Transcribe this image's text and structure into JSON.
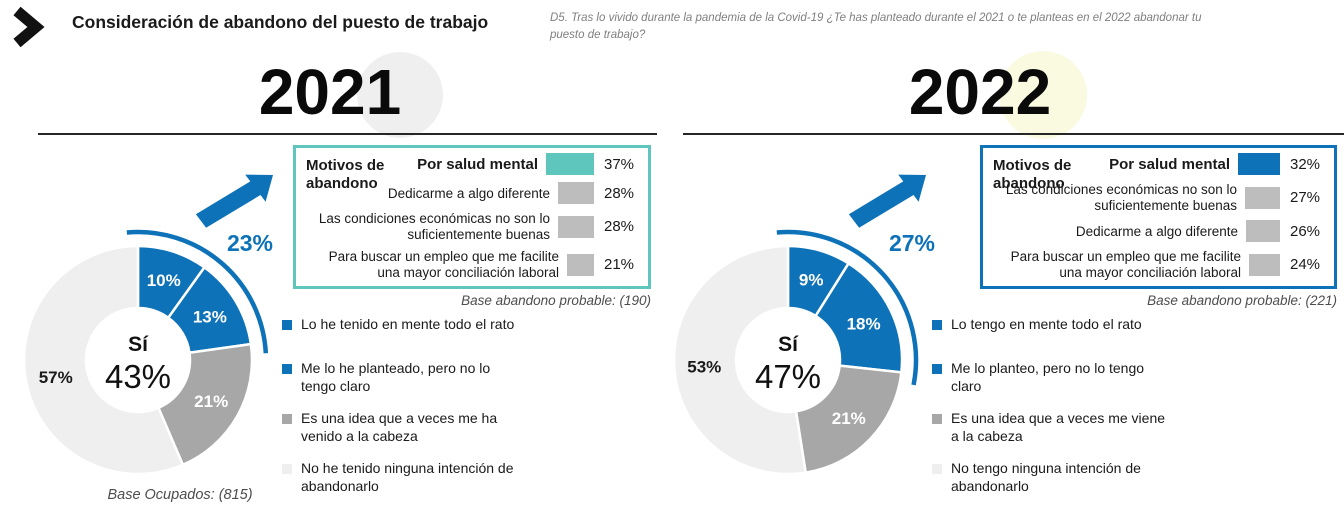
{
  "header": {
    "title": "Consideración de abandono del puesto de trabajo",
    "question": "D5. Tras lo vivido durante la pandemia de la Covid-19 ¿Te has planteado durante el 2021 o te planteas en el 2022 abandonar tu puesto de trabajo?"
  },
  "style": {
    "accent_blue": "#0d72b8",
    "accent_teal": "#5fc6bd",
    "segment_gray": "#a7a7a7",
    "segment_light": "#efefef",
    "bar_gray": "#bdbdbd",
    "year_circle_2021": "#efefef",
    "year_circle_2022": "#fafae1"
  },
  "chart_data": [
    {
      "type": "pie",
      "year": "2021",
      "center_label": "Sí",
      "center_value": "43%",
      "callout_value": "23%",
      "segments": [
        {
          "label": "Lo he tenido en mente todo el rato",
          "value": 10,
          "color": "#0d72b8",
          "text_color": "#ffffff"
        },
        {
          "label": "Me lo he planteado, pero no lo tengo claro",
          "value": 13,
          "color": "#0d72b8",
          "text_color": "#ffffff"
        },
        {
          "label": "Es una idea que a veces me ha venido a la cabeza",
          "value": 21,
          "color": "#a7a7a7",
          "text_color": "#ffffff"
        },
        {
          "label": "No he tenido ninguna intención de abandonarlo",
          "value": 57,
          "color": "#efefef",
          "text_color": "#1a1a1a"
        }
      ],
      "base_note": "Base Ocupados: (815)"
    },
    {
      "type": "bar",
      "year": "2021",
      "title": "Motivos de abandono",
      "categories": [
        "Por salud mental",
        "Dedicarme a algo diferente",
        "Las condiciones económicas no son lo suficientemente buenas",
        "Para buscar un empleo que me facilite una mayor conciliación laboral"
      ],
      "values": [
        37,
        28,
        28,
        21
      ],
      "value_labels": [
        "37%",
        "28%",
        "28%",
        "21%"
      ],
      "accent_color": "#5fc6bd",
      "bar_color": "#bdbdbd",
      "base_note": "Base abandono probable: (190)"
    },
    {
      "type": "pie",
      "year": "2022",
      "center_label": "Sí",
      "center_value": "47%",
      "callout_value": "27%",
      "segments": [
        {
          "label": "Lo tengo en mente todo el rato",
          "value": 9,
          "color": "#0d72b8",
          "text_color": "#ffffff"
        },
        {
          "label": "Me lo planteo, pero no lo tengo claro",
          "value": 18,
          "color": "#0d72b8",
          "text_color": "#ffffff"
        },
        {
          "label": "Es una idea que a veces me viene a la cabeza",
          "value": 21,
          "color": "#a7a7a7",
          "text_color": "#ffffff"
        },
        {
          "label": "No tengo ninguna intención de abandonarlo",
          "value": 53,
          "color": "#efefef",
          "text_color": "#1a1a1a"
        }
      ]
    },
    {
      "type": "bar",
      "year": "2022",
      "title": "Motivos de abandono",
      "categories": [
        "Por salud mental",
        "Las condiciones económicas no son lo suficientemente buenas",
        "Dedicarme a algo diferente",
        "Para buscar un empleo que me facilite una mayor conciliación laboral"
      ],
      "values": [
        32,
        27,
        26,
        24
      ],
      "value_labels": [
        "32%",
        "27%",
        "26%",
        "24%"
      ],
      "accent_color": "#0d72b8",
      "bar_color": "#bdbdbd",
      "base_note": "Base abandono probable: (221)"
    }
  ]
}
